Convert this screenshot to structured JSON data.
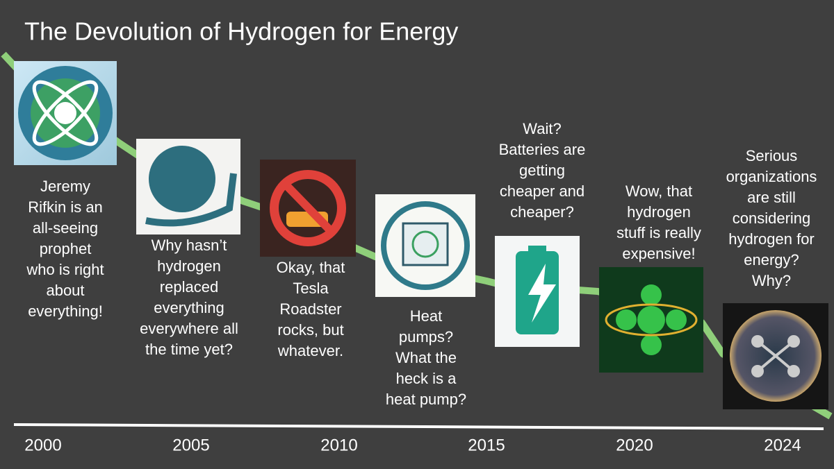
{
  "header": {
    "title": "The Devolution of Hydrogen for Energy"
  },
  "timeline": {
    "years": [
      "2000",
      "2005",
      "2010",
      "2015",
      "2020",
      "2024"
    ]
  },
  "items": [
    {
      "caption": [
        "Jeremy",
        "Rifkin is an",
        "all-seeing",
        "prophet",
        "who is right",
        "about",
        "everything!"
      ]
    },
    {
      "caption": [
        "Why hasn’t",
        "hydrogen",
        "replaced",
        "everything",
        "everywhere all",
        "the time yet?"
      ]
    },
    {
      "caption": [
        "Okay, that",
        "Tesla",
        "Roadster",
        "rocks, but",
        "whatever."
      ]
    },
    {
      "caption": [
        "Heat",
        "pumps?",
        "What the",
        "heck is a",
        "heat pump?"
      ]
    },
    {
      "caption": [
        "Wait?",
        "Batteries are",
        "getting",
        "cheaper and",
        "cheaper?"
      ]
    },
    {
      "caption": [
        "Wow, that",
        "hydrogen",
        "stuff is really",
        "expensive!"
      ]
    },
    {
      "caption": [
        "Serious",
        "organizations",
        "are still",
        "considering",
        "hydrogen for",
        "energy?",
        "Why?"
      ]
    }
  ]
}
